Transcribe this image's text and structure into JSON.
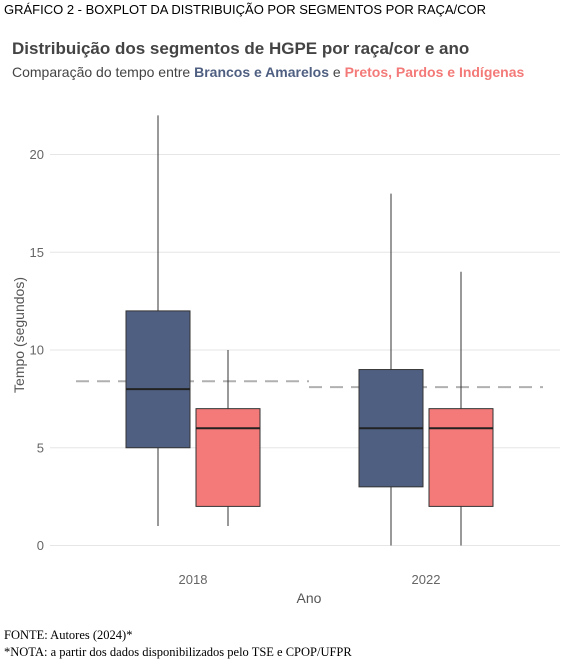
{
  "figure": {
    "caption": "GRÁFICO 2 - BOXPLOT DA DISTRIBUIÇÃO POR SEGMENTOS POR RAÇA/COR",
    "source": "FONTE: Autores (2024)*",
    "note": "*NOTA: a partir dos dados disponibilizados pelo TSE e CPOP/UFPR"
  },
  "chart_data": {
    "type": "boxplot",
    "title": "Distribuição dos segmentos de HGPE por raça/cor e ano",
    "subtitle": {
      "prefix": "Comparação do tempo entre ",
      "group_a": "Brancos e Amarelos",
      "middle": " e ",
      "group_b": "Pretos, Pardos e Indígenas"
    },
    "xlabel": "Ano",
    "ylabel": "Tempo (segundos)",
    "ylim": [
      0,
      22
    ],
    "yticks": [
      0,
      5,
      10,
      15,
      20
    ],
    "grid": true,
    "colors": {
      "Brancos e Amarelos": "#4f5f81",
      "Pretos, Pardos e Indígenas": "#f37a78",
      "reference_line": "#b0b0b0"
    },
    "categories": [
      "2018",
      "2022"
    ],
    "series": [
      {
        "name": "Brancos e Amarelos",
        "boxes": [
          {
            "category": "2018",
            "min": 1,
            "q1": 5,
            "median": 8,
            "q3": 12,
            "max": 22
          },
          {
            "category": "2022",
            "min": 0,
            "q1": 3,
            "median": 6,
            "q3": 9,
            "max": 18
          }
        ]
      },
      {
        "name": "Pretos, Pardos e Indígenas",
        "boxes": [
          {
            "category": "2018",
            "min": 1,
            "q1": 2,
            "median": 6,
            "q3": 7,
            "max": 10
          },
          {
            "category": "2022",
            "min": 0,
            "q1": 2,
            "median": 6,
            "q3": 7,
            "max": 14
          }
        ]
      }
    ],
    "reference_lines": [
      {
        "category": "2018",
        "value": 8.4
      },
      {
        "category": "2022",
        "value": 8.1
      }
    ]
  }
}
